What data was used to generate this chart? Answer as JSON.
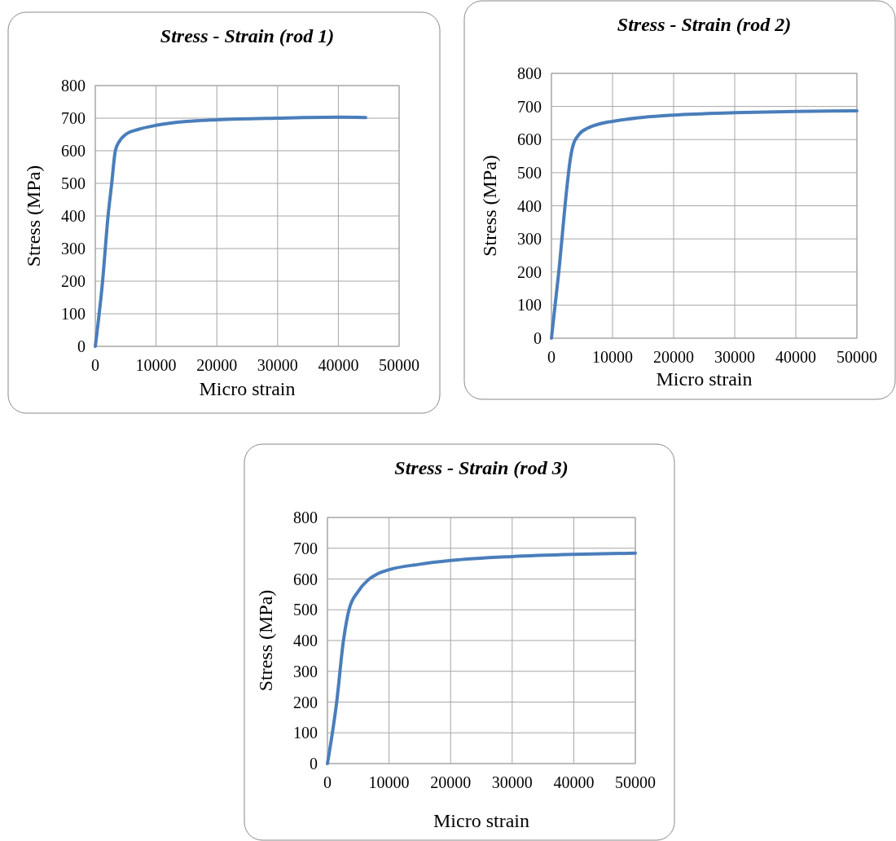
{
  "chart_data": [
    {
      "type": "line",
      "title": "Stress - Strain (rod 1)",
      "xlabel": "Micro strain",
      "ylabel": "Stress (MPa)",
      "xlim": [
        0,
        50000
      ],
      "xticks": [
        0,
        10000,
        20000,
        30000,
        40000,
        50000
      ],
      "ylim": [
        0,
        800
      ],
      "yticks": [
        0,
        100,
        200,
        300,
        400,
        500,
        600,
        700,
        800
      ],
      "grid": true,
      "series": [
        {
          "color": "#4a7ebb",
          "x": [
            0,
            1200,
            2100,
            2700,
            3300,
            4000,
            5000,
            7000,
            10000,
            15000,
            20000,
            30000,
            40000,
            44500
          ],
          "values": [
            0,
            200,
            400,
            500,
            600,
            630,
            650,
            665,
            678,
            690,
            695,
            700,
            703,
            702
          ]
        }
      ]
    },
    {
      "type": "line",
      "title": "Stress - Strain (rod 2)",
      "xlabel": "Micro strain",
      "ylabel": "Stress (MPa)",
      "xlim": [
        0,
        50000
      ],
      "xticks": [
        0,
        10000,
        20000,
        30000,
        40000,
        50000
      ],
      "ylim": [
        0,
        800
      ],
      "yticks": [
        0,
        100,
        200,
        300,
        400,
        500,
        600,
        700,
        800
      ],
      "grid": true,
      "series": [
        {
          "color": "#4a7ebb",
          "x": [
            0,
            1200,
            2500,
            3000,
            3500,
            4500,
            6000,
            8000,
            10000,
            15000,
            20000,
            30000,
            40000,
            50000
          ],
          "values": [
            0,
            200,
            450,
            530,
            580,
            615,
            635,
            648,
            655,
            667,
            674,
            681,
            685,
            687
          ]
        }
      ]
    },
    {
      "type": "line",
      "title": "Stress - Strain (rod 3)",
      "xlabel": "Micro strain",
      "ylabel": "Stress (MPa)",
      "xlim": [
        0,
        50000
      ],
      "xticks": [
        0,
        10000,
        20000,
        30000,
        40000,
        50000
      ],
      "ylim": [
        0,
        800
      ],
      "yticks": [
        0,
        100,
        200,
        300,
        400,
        500,
        600,
        700,
        800
      ],
      "grid": true,
      "series": [
        {
          "color": "#4a7ebb",
          "x": [
            0,
            1500,
            2600,
            3500,
            5000,
            6500,
            8000,
            10000,
            15000,
            20000,
            30000,
            40000,
            50000
          ],
          "values": [
            0,
            200,
            400,
            500,
            560,
            595,
            615,
            630,
            648,
            660,
            673,
            680,
            684
          ]
        }
      ]
    }
  ]
}
